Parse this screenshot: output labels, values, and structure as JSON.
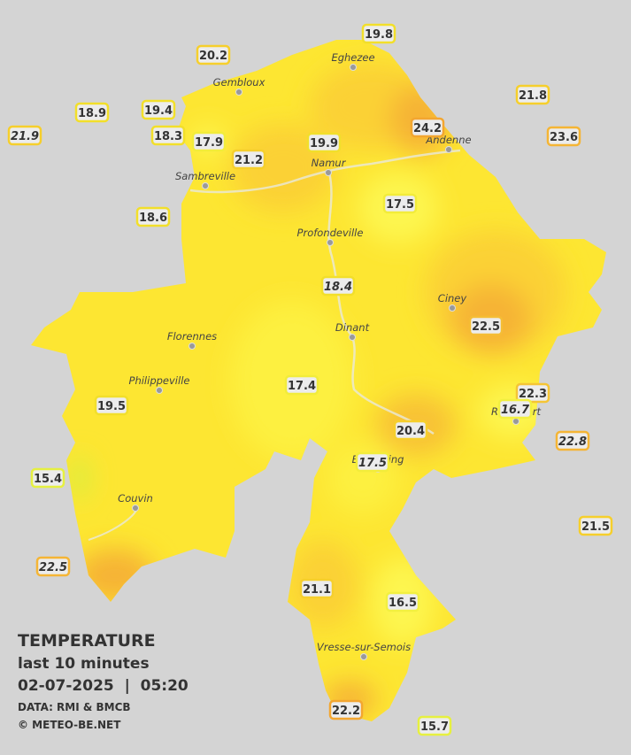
{
  "map": {
    "title": "TEMPERATURE",
    "subtitle": "last 10 minutes",
    "datetime": "02-07-2025  |  05:20",
    "source": "DATA: RMI & BMCB",
    "credit": "© METEO-BE.NET"
  },
  "cities": [
    "Eghezee",
    "Gembloux",
    "Andenne",
    "Namur",
    "Sambreville",
    "Profondeville",
    "Ciney",
    "Dinant",
    "Florennes",
    "Philippeville",
    "Rochefort",
    "Beauraing",
    "Couvin",
    "Vresse-sur-Semois"
  ],
  "stations": [
    {
      "value": "19.8",
      "color": "#f2df2a"
    },
    {
      "value": "20.2",
      "color": "#f6cf2c"
    },
    {
      "value": "21.8",
      "color": "#f6cf2c"
    },
    {
      "value": "18.9",
      "color": "#f2df2a"
    },
    {
      "value": "19.4",
      "color": "#f2df2a"
    },
    {
      "value": "21.9",
      "color": "#f6cf2c",
      "italic": true
    },
    {
      "value": "18.3",
      "color": "#f2df2a"
    },
    {
      "value": "17.9",
      "color": "#f2ec3a"
    },
    {
      "value": "21.2",
      "color": "#f6cf2c"
    },
    {
      "value": "19.9",
      "color": "#f2df2a"
    },
    {
      "value": "24.2",
      "color": "#f3a630"
    },
    {
      "value": "23.6",
      "color": "#f5b535"
    },
    {
      "value": "18.6",
      "color": "#f2df2a"
    },
    {
      "value": "17.5",
      "color": "#f2ec3a"
    },
    {
      "value": "18.4",
      "color": "#f2df2a",
      "italic": true
    },
    {
      "value": "22.5",
      "color": "#f5bd35"
    },
    {
      "value": "17.4",
      "color": "#f2ec3a"
    },
    {
      "value": "19.5",
      "color": "#f2df2a"
    },
    {
      "value": "22.3",
      "color": "#f5c535"
    },
    {
      "value": "16.7",
      "color": "#f2f040",
      "italic": true
    },
    {
      "value": "20.4",
      "color": "#f6cf2c"
    },
    {
      "value": "22.8",
      "color": "#f5b535",
      "italic": true
    },
    {
      "value": "17.5",
      "color": "#f2ec3a",
      "italic": true
    },
    {
      "value": "15.4",
      "color": "#e6f040"
    },
    {
      "value": "21.5",
      "color": "#f6cf2c"
    },
    {
      "value": "22.5",
      "color": "#f5b535",
      "italic": true
    },
    {
      "value": "21.1",
      "color": "#f6cf2c"
    },
    {
      "value": "16.5",
      "color": "#f2f040"
    },
    {
      "value": "22.2",
      "color": "#f3a630"
    },
    {
      "value": "15.7",
      "color": "#e6f040"
    }
  ]
}
